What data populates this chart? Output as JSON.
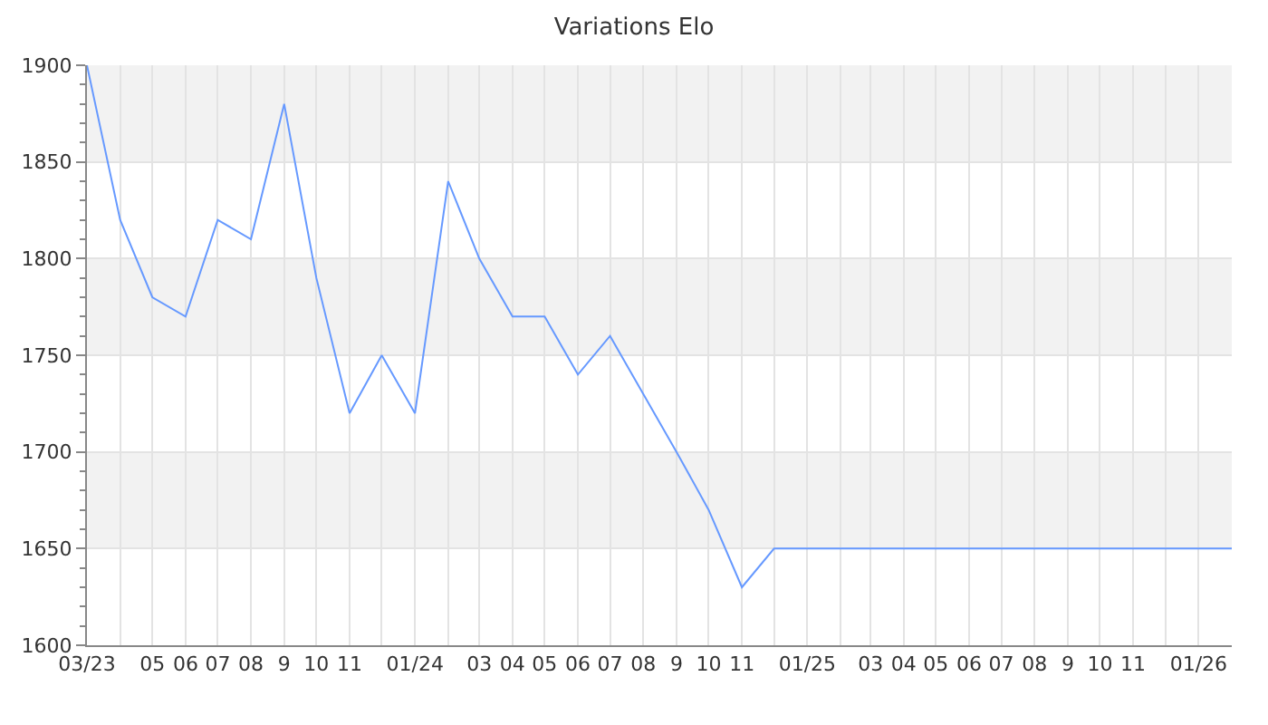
{
  "chart_data": {
    "type": "line",
    "title": "Variations Elo",
    "x": [
      "2023-03",
      "2023-04",
      "2023-05",
      "2023-06",
      "2023-07",
      "2023-08",
      "2023-09",
      "2023-10",
      "2023-11",
      "2023-12",
      "2024-01",
      "2024-02",
      "2024-03",
      "2024-04",
      "2024-05",
      "2024-06",
      "2024-07",
      "2024-08",
      "2024-09",
      "2024-10",
      "2024-11",
      "2024-12",
      "2025-01",
      "2025-02",
      "2025-03",
      "2025-04",
      "2025-05",
      "2025-06",
      "2025-07",
      "2025-08",
      "2025-09",
      "2025-10",
      "2025-11",
      "2025-12",
      "2026-01",
      "2026-02"
    ],
    "series": [
      {
        "color": "#6699ff",
        "values": [
          1900,
          1820,
          1780,
          1770,
          1820,
          1810,
          1880,
          1790,
          1720,
          1750,
          1720,
          1840,
          1800,
          1770,
          1770,
          1740,
          1760,
          1730,
          1700,
          1670,
          1630,
          1650,
          1650,
          1650,
          1650,
          1650,
          1650,
          1650,
          1650,
          1650,
          1650,
          1650,
          1650,
          1650,
          1650,
          1650
        ]
      }
    ],
    "xlim": [
      "2023-03",
      "2026-02"
    ],
    "xticks": [
      {
        "value": "2023-03",
        "label": "03/23"
      },
      {
        "value": "2023-04",
        "label": null
      },
      {
        "value": "2023-05",
        "label": "05"
      },
      {
        "value": "2023-06",
        "label": "06"
      },
      {
        "value": "2023-07",
        "label": "07"
      },
      {
        "value": "2023-08",
        "label": "08"
      },
      {
        "value": "2023-09",
        "label": "9"
      },
      {
        "value": "2023-10",
        "label": "10"
      },
      {
        "value": "2023-11",
        "label": "11"
      },
      {
        "value": "2023-12",
        "label": null
      },
      {
        "value": "2024-01",
        "label": "01/24"
      },
      {
        "value": "2024-02",
        "label": null
      },
      {
        "value": "2024-03",
        "label": "03"
      },
      {
        "value": "2024-04",
        "label": "04"
      },
      {
        "value": "2024-05",
        "label": "05"
      },
      {
        "value": "2024-06",
        "label": "06"
      },
      {
        "value": "2024-07",
        "label": "07"
      },
      {
        "value": "2024-08",
        "label": "08"
      },
      {
        "value": "2024-09",
        "label": "9"
      },
      {
        "value": "2024-10",
        "label": "10"
      },
      {
        "value": "2024-11",
        "label": "11"
      },
      {
        "value": "2024-12",
        "label": null
      },
      {
        "value": "2025-01",
        "label": "01/25"
      },
      {
        "value": "2025-02",
        "label": null
      },
      {
        "value": "2025-03",
        "label": "03"
      },
      {
        "value": "2025-04",
        "label": "04"
      },
      {
        "value": "2025-05",
        "label": "05"
      },
      {
        "value": "2025-06",
        "label": "06"
      },
      {
        "value": "2025-07",
        "label": "07"
      },
      {
        "value": "2025-08",
        "label": "08"
      },
      {
        "value": "2025-09",
        "label": "9"
      },
      {
        "value": "2025-10",
        "label": "10"
      },
      {
        "value": "2025-11",
        "label": "11"
      },
      {
        "value": "2025-12",
        "label": null
      },
      {
        "value": "2026-01",
        "label": "01/26"
      }
    ],
    "ylim": [
      1600,
      1900
    ],
    "yticks": [
      1600,
      1650,
      1700,
      1750,
      1800,
      1850,
      1900
    ],
    "grid": true,
    "marker": "none",
    "line_style": "solid"
  }
}
